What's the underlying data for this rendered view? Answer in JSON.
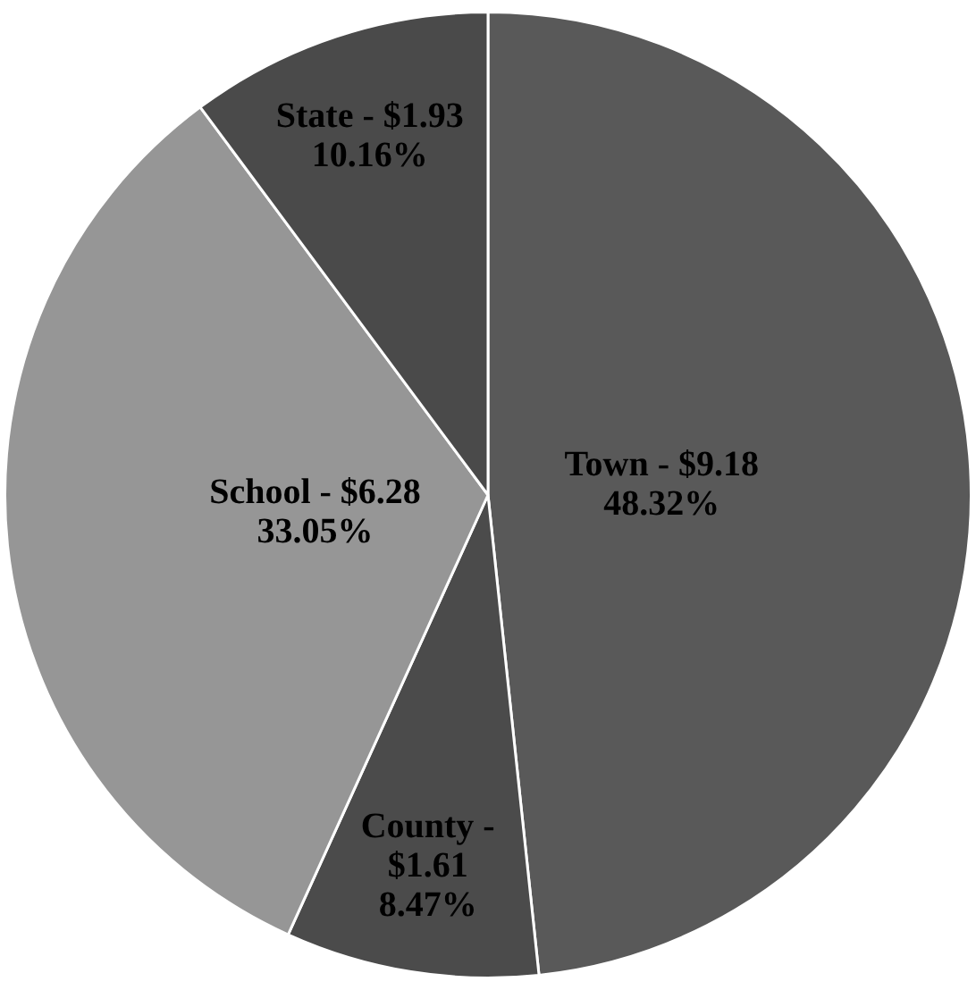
{
  "chart_data": {
    "type": "pie",
    "categories": [
      "Town -",
      "County -",
      "School -",
      "State -"
    ],
    "values": [
      9.18,
      1.61,
      6.28,
      1.93
    ],
    "value_labels": [
      "$9.18\n48.32%",
      "$1.61\n8.47%",
      "$6.28\n33.05%",
      "$1.93\n10.16%"
    ],
    "colors": [
      "#595959",
      "#4b4b4b",
      "#969696",
      "#4a4a4a"
    ],
    "legend": false
  }
}
